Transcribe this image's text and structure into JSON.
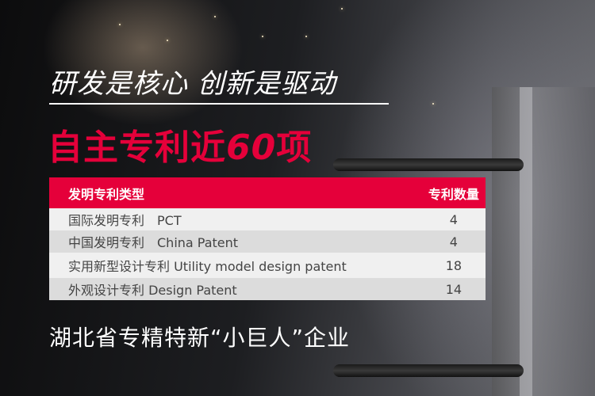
{
  "headline": "研发是核心 创新是驱动",
  "subheadline": {
    "prefix": "自主专利近",
    "number": "60",
    "suffix": "项"
  },
  "table": {
    "headers": [
      "发明专利类型",
      "专利数量"
    ],
    "rows": [
      {
        "type": "国际发明专利　PCT",
        "count": "4"
      },
      {
        "type": "中国发明专利　China Patent",
        "count": "4"
      },
      {
        "type": "实用新型设计专利  Utility model design patent",
        "count": "18"
      },
      {
        "type": "外观设计专利  Design Patent",
        "count": "14"
      }
    ]
  },
  "footer": "湖北省专精特新“小巨人”企业",
  "colors": {
    "accent": "#e5003a"
  }
}
